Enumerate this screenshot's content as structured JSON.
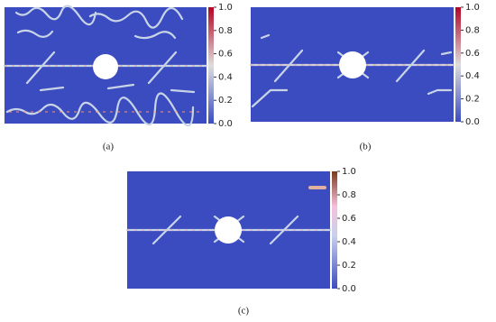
{
  "panels": [
    {
      "label": "(a)",
      "colorbar": {
        "ticks": [
          {
            "value": 0,
            "label": "0.0"
          },
          0.2,
          0.4,
          0.6,
          0.8,
          {
            "value": 1,
            "label": "1.0"
          }
        ]
      }
    },
    {
      "label": "(b)",
      "colorbar": {
        "ticks": [
          {
            "value": 0,
            "label": "0.0"
          },
          0.2,
          0.4,
          0.6,
          0.8,
          {
            "value": 1,
            "label": "1.0"
          }
        ]
      }
    },
    {
      "label": "(c)",
      "colorbar": {
        "ticks": [
          {
            "value": 0,
            "label": "0.0"
          },
          0.2,
          0.4,
          0.6,
          0.8,
          {
            "value": 1,
            "label": "1.0"
          }
        ]
      }
    }
  ]
}
